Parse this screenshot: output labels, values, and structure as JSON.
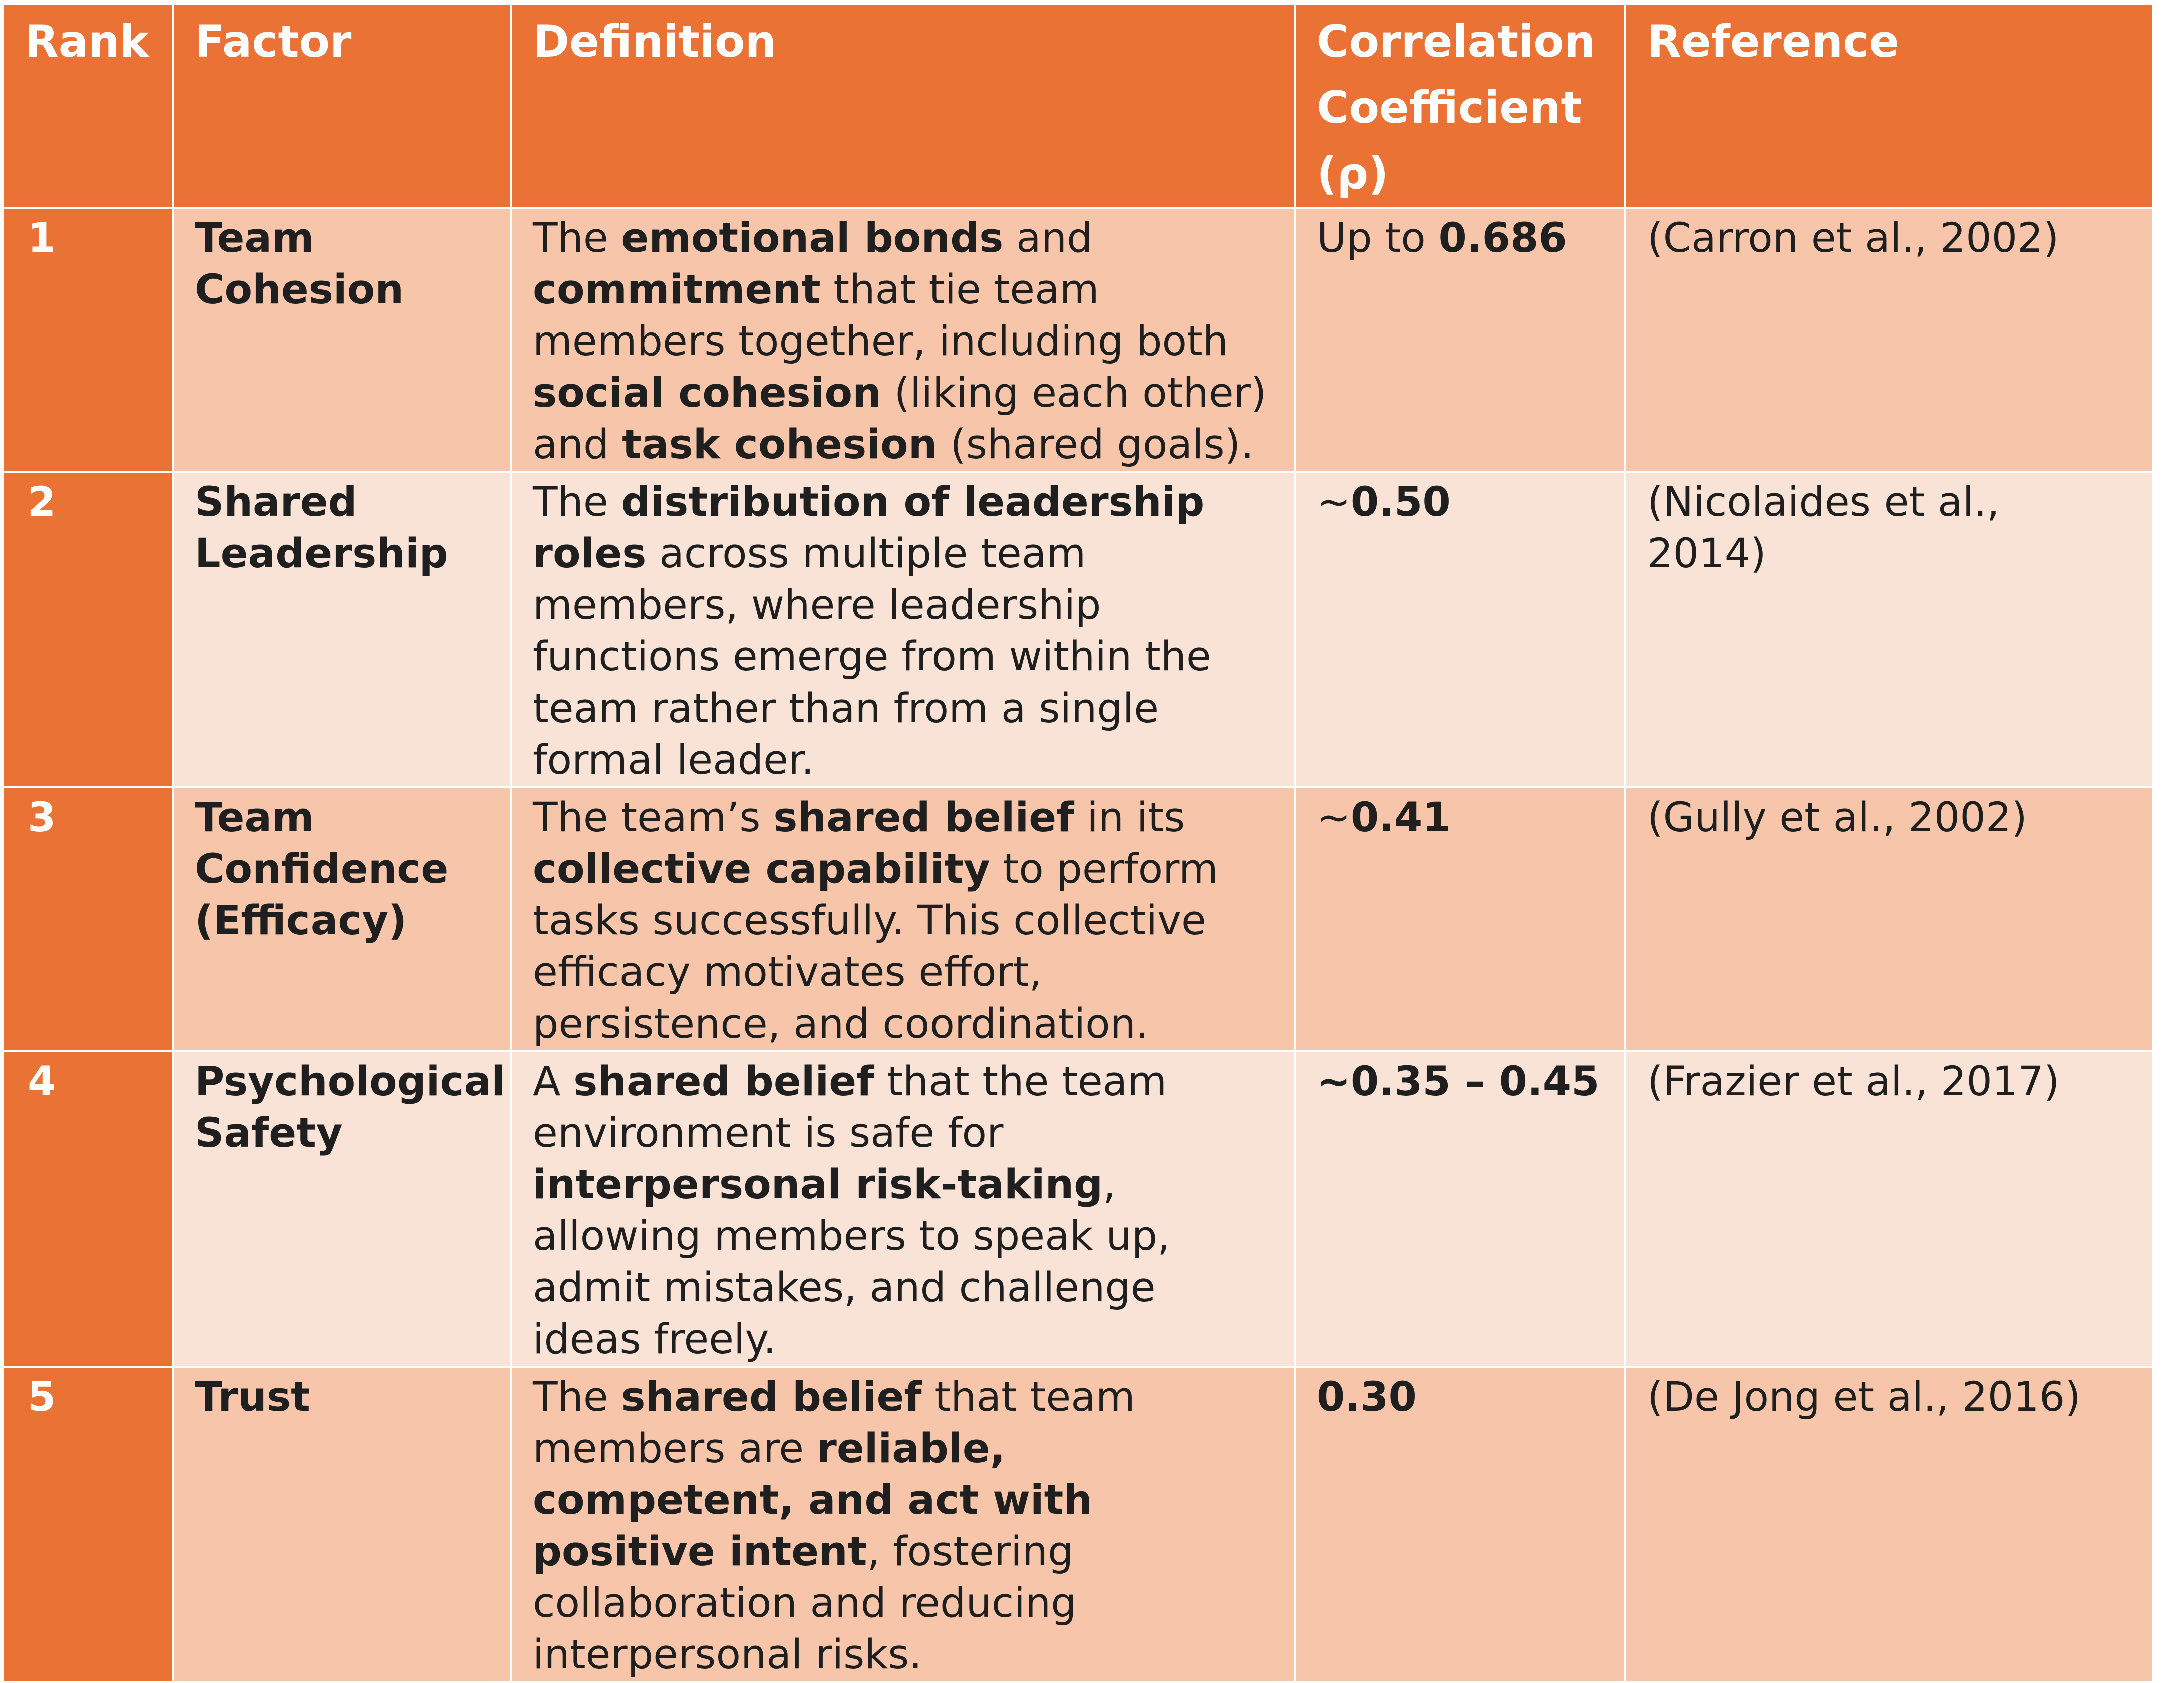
{
  "colors": {
    "header_bg": "#ea7234",
    "rank_bg": "#ea7234",
    "row_odd_bg": "#f6c5aa",
    "row_even_bg": "#f9e2d6",
    "text": "#1f1f1f",
    "header_text": "#ffffff"
  },
  "header": {
    "rank": "Rank",
    "factor": "Factor",
    "definition": "Definition",
    "correlation": "Correlation Coefficient (ρ)",
    "reference": "Reference"
  },
  "rows": [
    {
      "rank": "1",
      "factor": "Team Cohesion",
      "definition": [
        {
          "t": "The "
        },
        {
          "t": "emotional bonds",
          "b": true
        },
        {
          "t": " and "
        },
        {
          "t": "commitment",
          "b": true
        },
        {
          "t": " that tie team members together, including both "
        },
        {
          "t": "social cohesion",
          "b": true
        },
        {
          "t": " (liking each other) and "
        },
        {
          "t": "task cohesion",
          "b": true
        },
        {
          "t": " (shared goals)."
        }
      ],
      "correlation": [
        {
          "t": "Up to "
        },
        {
          "t": "0.686",
          "b": true
        }
      ],
      "reference": "(Carron et al., 2002)"
    },
    {
      "rank": "2",
      "factor": "Shared Leadership",
      "definition": [
        {
          "t": "The "
        },
        {
          "t": "distribution of leadership roles",
          "b": true
        },
        {
          "t": " across multiple team members, where leadership functions emerge from within the team rather than from a single formal leader."
        }
      ],
      "correlation": [
        {
          "t": "~"
        },
        {
          "t": "0.50",
          "b": true
        }
      ],
      "reference": "(Nicolaides et al., 2014)"
    },
    {
      "rank": "3",
      "factor": "Team Confidence (Efficacy)",
      "definition": [
        {
          "t": "The team’s "
        },
        {
          "t": "shared belief",
          "b": true
        },
        {
          "t": " in its "
        },
        {
          "t": "collective capability",
          "b": true
        },
        {
          "t": " to perform tasks successfully. This collective efficacy motivates effort, persistence, and coordination."
        }
      ],
      "correlation": [
        {
          "t": "~"
        },
        {
          "t": "0.41",
          "b": true
        }
      ],
      "reference": "(Gully et al., 2002)"
    },
    {
      "rank": "4",
      "factor": "Psychological Safety",
      "definition": [
        {
          "t": "A "
        },
        {
          "t": "shared belief",
          "b": true
        },
        {
          "t": " that the team environment is safe for "
        },
        {
          "t": "interpersonal risk-taking",
          "b": true
        },
        {
          "t": ", allowing members to speak up, admit mistakes, and challenge ideas freely."
        }
      ],
      "correlation": [
        {
          "t": "~0.35 – 0.45",
          "b": true
        }
      ],
      "reference": "(Frazier et al., 2017)"
    },
    {
      "rank": "5",
      "factor": "Trust",
      "definition": [
        {
          "t": "The "
        },
        {
          "t": "shared belief",
          "b": true
        },
        {
          "t": " that team members are "
        },
        {
          "t": "reliable, competent, and act with positive intent",
          "b": true
        },
        {
          "t": ", fostering collaboration and reducing interpersonal risks."
        }
      ],
      "correlation": [
        {
          "t": "0.30",
          "b": true
        }
      ],
      "reference": "(De Jong et al., 2016)"
    }
  ]
}
